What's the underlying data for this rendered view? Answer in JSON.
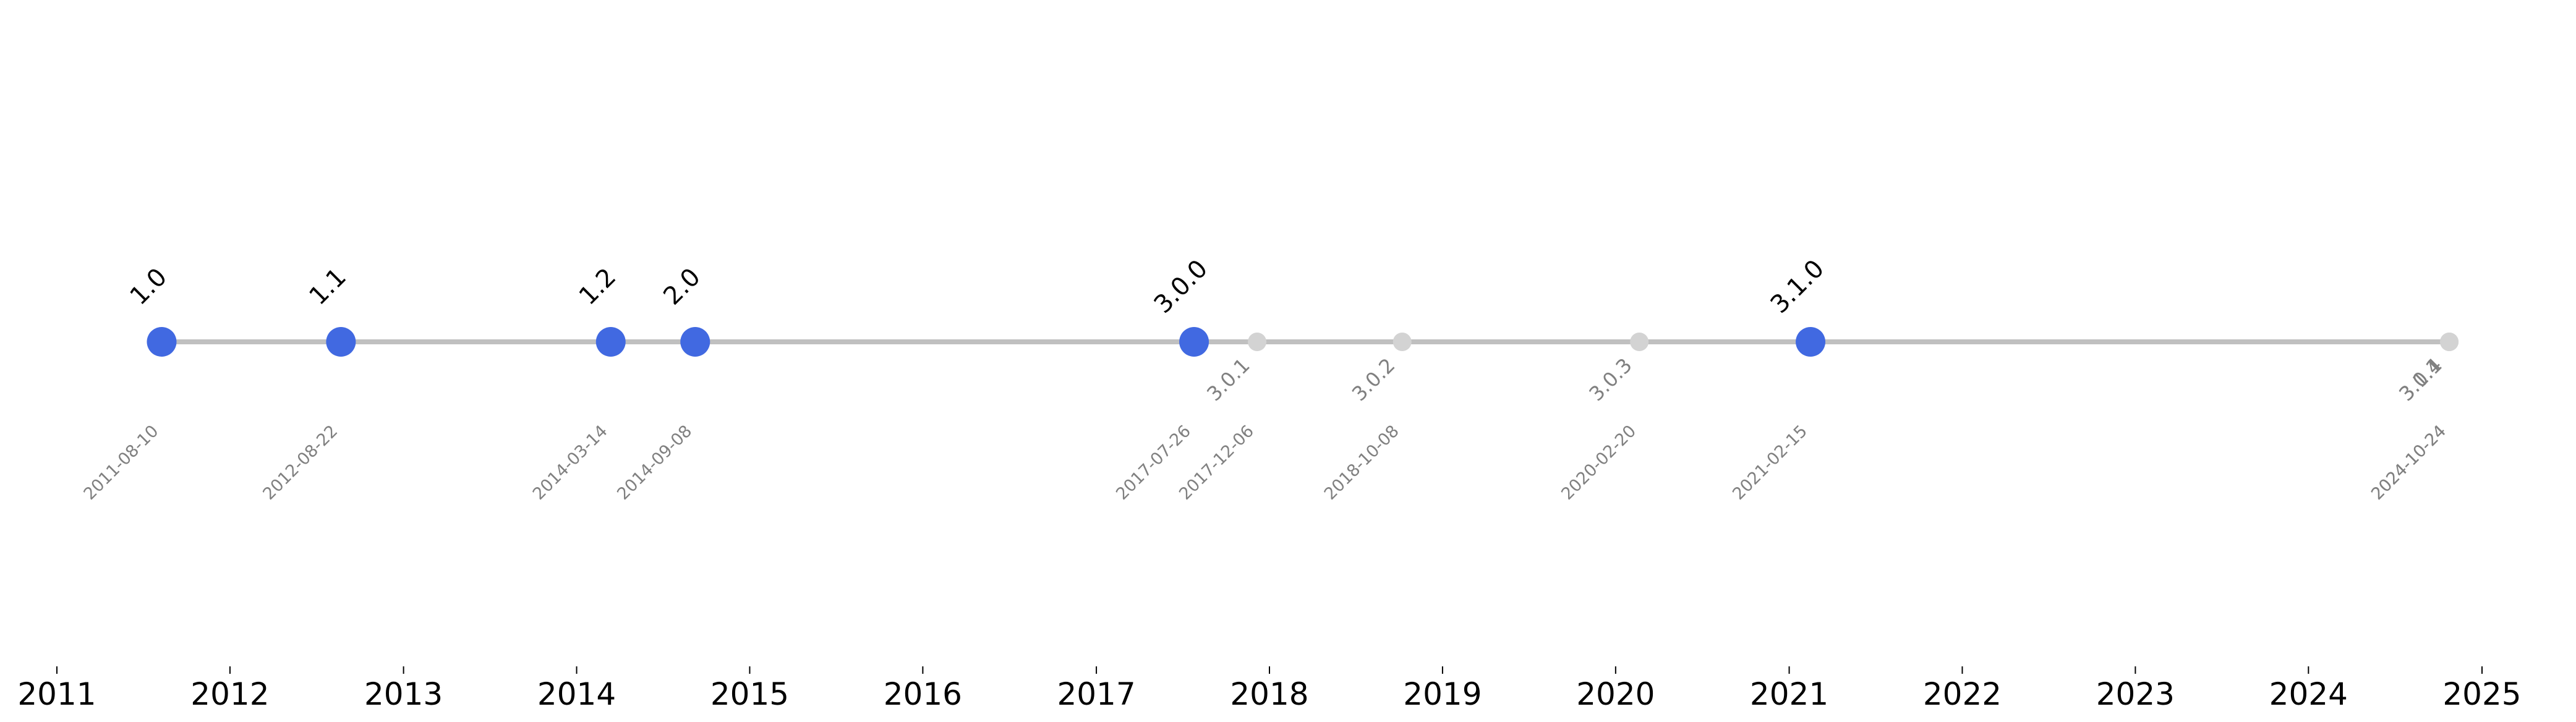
{
  "chart_data": {
    "type": "scatter",
    "title": "",
    "xlabel": "",
    "ylabel": "",
    "xlim": [
      "2011-01-01",
      "2025-01-01"
    ],
    "x_ticks": [
      "2011",
      "2012",
      "2013",
      "2014",
      "2015",
      "2016",
      "2017",
      "2018",
      "2019",
      "2020",
      "2021",
      "2022",
      "2023",
      "2024",
      "2025"
    ],
    "grid": false,
    "colors": {
      "major": "#4169e1",
      "minor": "#d3d3d3",
      "line": "#c0c0c0"
    },
    "releases": [
      {
        "version": "1.0",
        "date": "2011-08-10",
        "major": true
      },
      {
        "version": "1.1",
        "date": "2012-08-22",
        "major": true
      },
      {
        "version": "1.2",
        "date": "2014-03-14",
        "major": true
      },
      {
        "version": "2.0",
        "date": "2014-09-08",
        "major": true
      },
      {
        "version": "3.0.0",
        "date": "2017-07-26",
        "major": true
      },
      {
        "version": "3.0.1",
        "date": "2017-12-06",
        "major": false
      },
      {
        "version": "3.0.2",
        "date": "2018-10-08",
        "major": false
      },
      {
        "version": "3.0.3",
        "date": "2020-02-20",
        "major": false
      },
      {
        "version": "3.1.0",
        "date": "2021-02-15",
        "major": true
      },
      {
        "version": "3.1.1",
        "date": "2024-10-24",
        "major": false
      },
      {
        "version": "3.0.4",
        "date": "2024-10-24",
        "major": false
      }
    ]
  }
}
